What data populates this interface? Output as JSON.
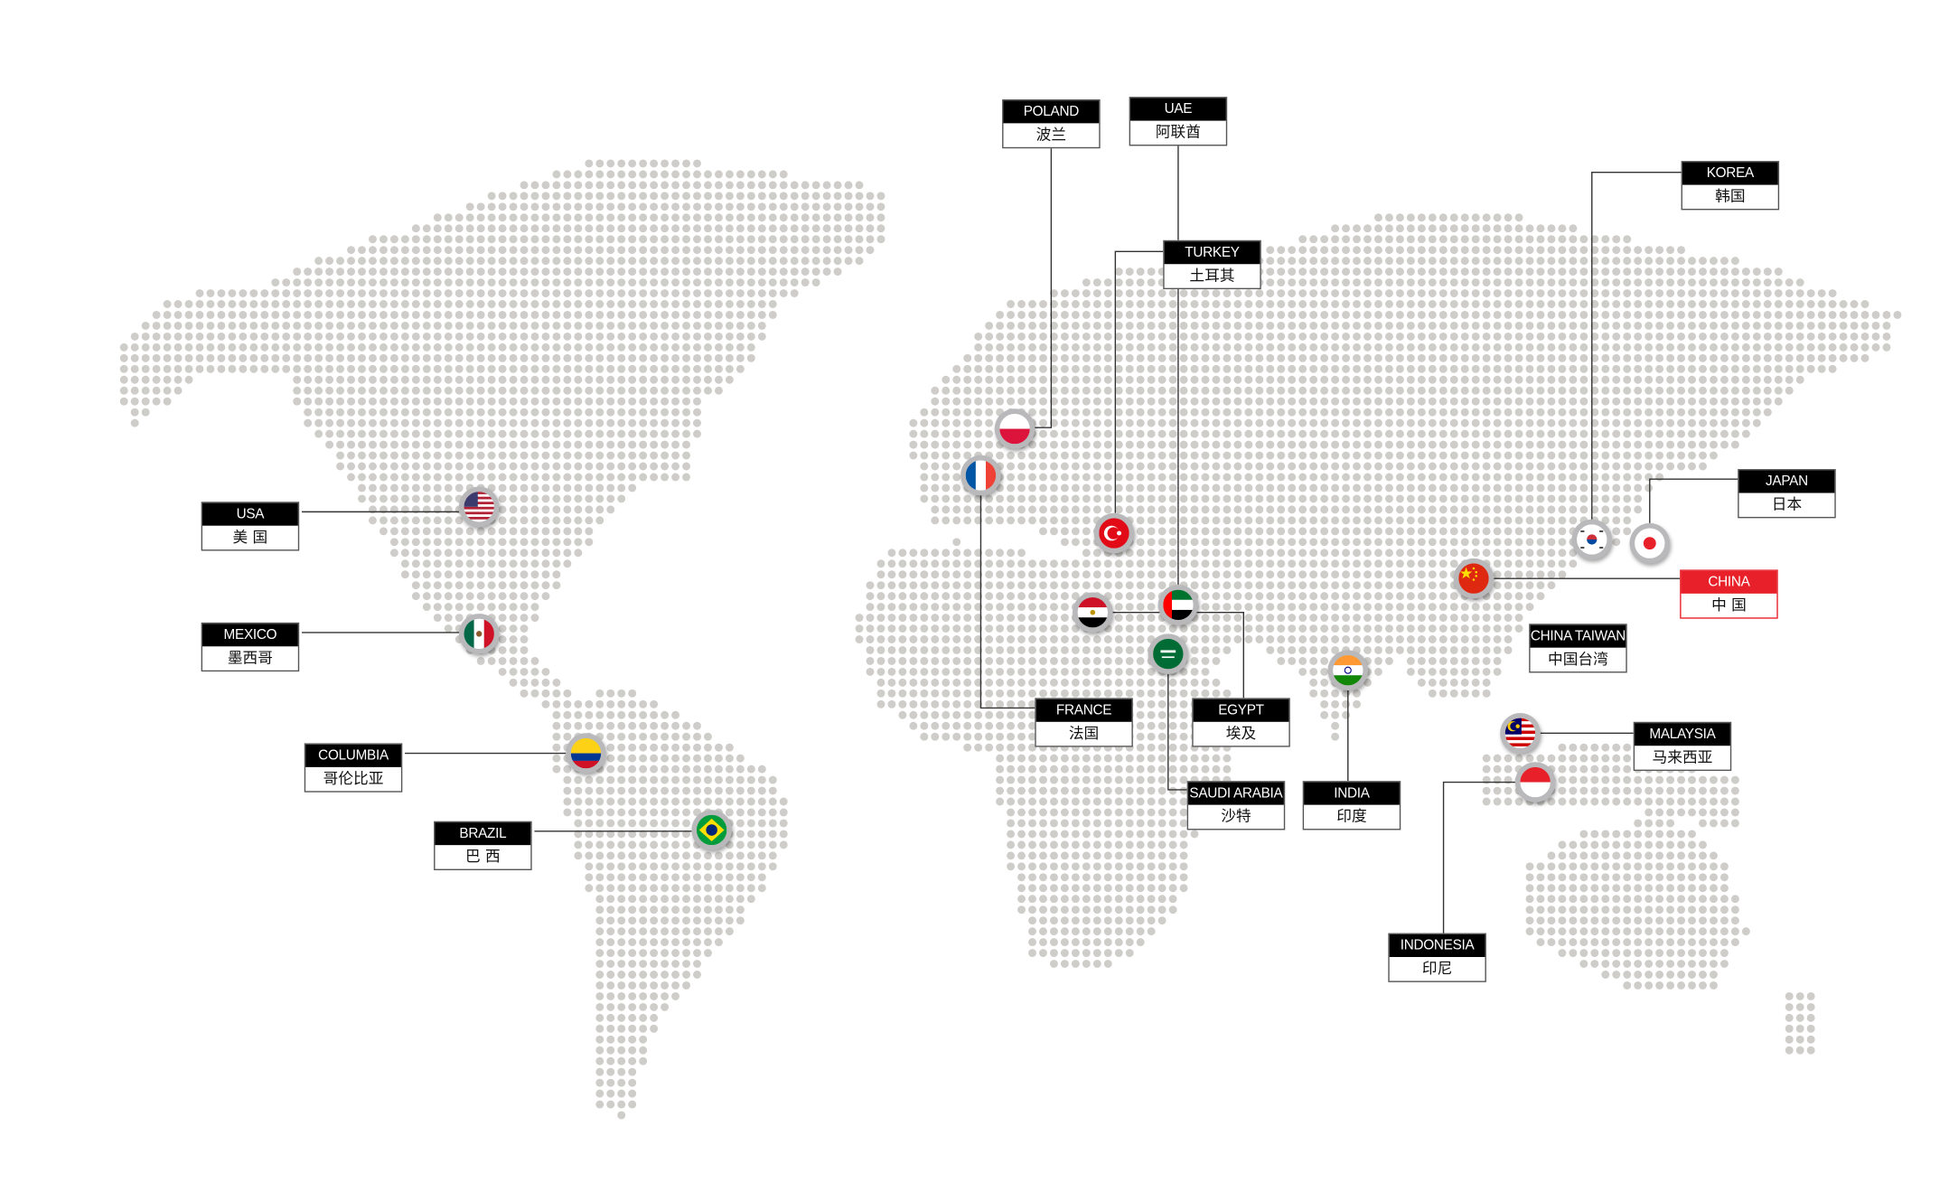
{
  "colors": {
    "dot": "#cfcdc9",
    "label_header": "#000000",
    "highlight": "#e8202a",
    "line": "#333333",
    "flag_ring": "#b9b9bb"
  },
  "locations": [
    {
      "key": "poland",
      "en": "POLAND",
      "zh": "波兰",
      "flag_icon": "poland-flag-icon"
    },
    {
      "key": "uae",
      "en": "UAE",
      "zh": "阿联酋",
      "flag_icon": "uae-flag-icon"
    },
    {
      "key": "turkey",
      "en": "TURKEY",
      "zh": "土耳其",
      "flag_icon": "turkey-flag-icon"
    },
    {
      "key": "korea",
      "en": "KOREA",
      "zh": "韩国",
      "flag_icon": "korea-flag-icon"
    },
    {
      "key": "japan",
      "en": "JAPAN",
      "zh": "日本",
      "flag_icon": "japan-flag-icon"
    },
    {
      "key": "china",
      "en": "CHINA",
      "zh": "中 国",
      "flag_icon": "china-flag-icon",
      "highlighted": true
    },
    {
      "key": "taiwan",
      "en": "CHINA TAIWAN",
      "zh": "中国台湾"
    },
    {
      "key": "malaysia",
      "en": "MALAYSIA",
      "zh": "马来西亚",
      "flag_icon": "malaysia-flag-icon"
    },
    {
      "key": "indonesia",
      "en": "INDONESIA",
      "zh": "印尼",
      "flag_icon": "indonesia-flag-icon"
    },
    {
      "key": "india",
      "en": "INDIA",
      "zh": "印度",
      "flag_icon": "india-flag-icon"
    },
    {
      "key": "saudi",
      "en": "SAUDI ARABIA",
      "zh": "沙特",
      "flag_icon": "saudi-arabia-flag-icon"
    },
    {
      "key": "egypt",
      "en": "EGYPT",
      "zh": "埃及",
      "flag_icon": "egypt-flag-icon"
    },
    {
      "key": "france",
      "en": "FRANCE",
      "zh": "法国",
      "flag_icon": "france-flag-icon"
    },
    {
      "key": "usa",
      "en": "USA",
      "zh": "美 国",
      "flag_icon": "usa-flag-icon"
    },
    {
      "key": "mexico",
      "en": "MEXICO",
      "zh": "墨西哥",
      "flag_icon": "mexico-flag-icon"
    },
    {
      "key": "columbia",
      "en": "COLUMBIA",
      "zh": "哥伦比亚",
      "flag_icon": "colombia-flag-icon"
    },
    {
      "key": "brazil",
      "en": "BRAZIL",
      "zh": "巴 西",
      "flag_icon": "brazil-flag-icon"
    }
  ]
}
